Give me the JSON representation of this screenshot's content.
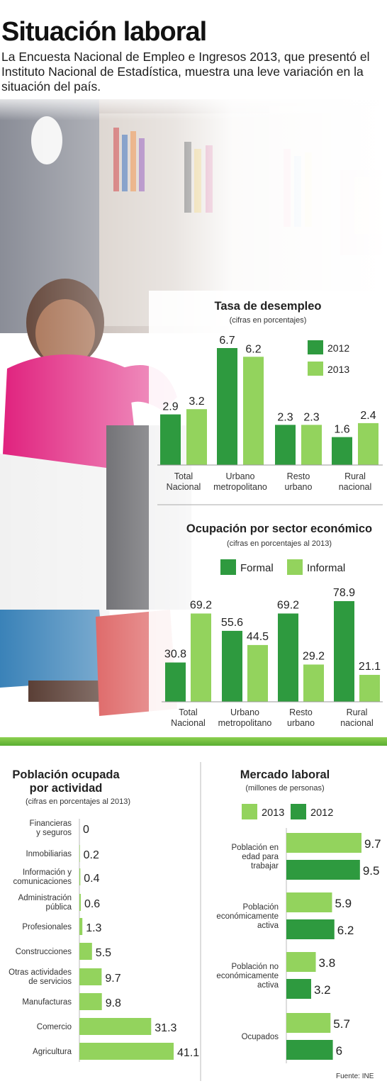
{
  "page": {
    "title": "Situación laboral",
    "intro": "La Encuesta Nacional de Empleo e Ingresos 2013, que presentó el Instituto Nacional de Estadística, muestra  una leve variación en la situación del país.",
    "source": "Fuente: INE"
  },
  "colors": {
    "dark_green": "#2e9a3f",
    "light_green": "#93d35d",
    "bar_gray": "#cfcfcf"
  },
  "chart_data": [
    {
      "id": "desempleo",
      "type": "bar",
      "title": "Tasa de desempleo",
      "subtitle": "(cifras en porcentajes)",
      "categories": [
        "Total Nacional",
        "Urbano metropolitano",
        "Resto urbano",
        "Rural nacional"
      ],
      "series": [
        {
          "name": "2012",
          "values": [
            2.9,
            6.7,
            2.3,
            1.6
          ],
          "color": "#2e9a3f"
        },
        {
          "name": "2013",
          "values": [
            3.2,
            6.2,
            2.3,
            2.4
          ],
          "color": "#93d35d"
        }
      ],
      "value_labels": [
        [
          "2.9",
          "6.7",
          "2.3",
          "1.6"
        ],
        [
          "3.2",
          "6.2",
          "2.3",
          "2.4"
        ]
      ],
      "ylim": [
        0,
        7.5
      ],
      "legend": "right"
    },
    {
      "id": "ocupacion",
      "type": "bar",
      "title": "Ocupación por sector económico",
      "subtitle": "(cifras en porcentajes al 2013)",
      "categories": [
        "Total Nacional",
        "Urbano metropolitano",
        "Resto urbano",
        "Rural nacional"
      ],
      "series": [
        {
          "name": "Formal",
          "values": [
            30.8,
            55.6,
            69.2,
            78.9
          ],
          "color": "#2e9a3f"
        },
        {
          "name": "Informal",
          "values": [
            69.2,
            44.5,
            29.2,
            21.1
          ],
          "color": "#93d35d"
        }
      ],
      "value_labels": [
        [
          "30.8",
          "55.6",
          "69.2",
          "78.9"
        ],
        [
          "69.2",
          "44.5",
          "29.2",
          "21.1"
        ]
      ],
      "ylim": [
        0,
        85
      ],
      "legend": "top"
    },
    {
      "id": "actividad",
      "type": "bar",
      "orientation": "horizontal",
      "title": "Población ocupada por actividad",
      "subtitle": "(cifras en porcentajes al 2013)",
      "categories": [
        "Financieras y seguros",
        "Inmobiliarias",
        "Información y comunicaciones",
        "Administración pública",
        "Profesionales",
        "Construcciones",
        "Otras actividades de servicios",
        "Manufacturas",
        "Comercio",
        "Agricultura"
      ],
      "values": [
        0,
        0.2,
        0.4,
        0.6,
        1.3,
        5.5,
        9.7,
        9.8,
        31.3,
        41.1
      ],
      "value_labels": [
        "0",
        "0.2",
        "0.4",
        "0.6",
        "1.3",
        "5.5",
        "9.7",
        "9.8",
        "31.3",
        "41.1"
      ],
      "xlim": [
        0,
        42
      ]
    },
    {
      "id": "mercado",
      "type": "bar",
      "orientation": "horizontal",
      "title": "Mercado laboral",
      "subtitle": "(millones de personas)",
      "categories": [
        "Población en edad para trabajar",
        "Población económicamente activa",
        "Población no económicamente activa",
        "Ocupados"
      ],
      "series": [
        {
          "name": "2013",
          "values": [
            9.7,
            5.9,
            3.8,
            5.7
          ],
          "color": "#93d35d"
        },
        {
          "name": "2012",
          "values": [
            9.5,
            6.2,
            3.2,
            6
          ],
          "color": "#2e9a3f"
        }
      ],
      "value_labels": [
        [
          "9.7",
          "5.9",
          "3.8",
          "5.7"
        ],
        [
          "9.5",
          "6.2",
          "3.2",
          "6"
        ]
      ],
      "xlim": [
        0,
        9.7
      ],
      "legend": "top"
    }
  ]
}
